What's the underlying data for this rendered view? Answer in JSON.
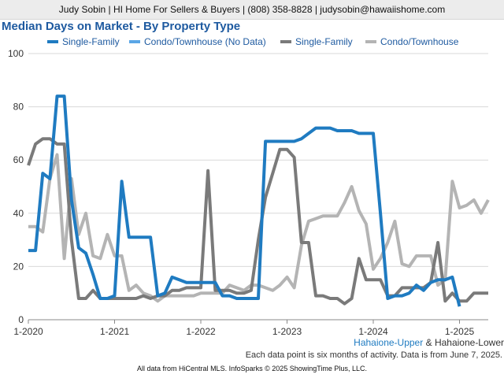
{
  "header": {
    "contact_line": "Judy Sobin | HI Home For Sellers & Buyers | (808) 358-8828 | judysobin@hawaiishome.com"
  },
  "chart_data": {
    "type": "line",
    "title": "Median Days on Market - By Property Type",
    "xlabel": "",
    "ylabel": "",
    "ylim": [
      0,
      100
    ],
    "y_ticks": [
      "0",
      "20",
      "40",
      "60",
      "80",
      "100"
    ],
    "x_ticks": [
      "1-2020",
      "1-2021",
      "1-2022",
      "1-2023",
      "1-2024",
      "1-2025"
    ],
    "x_range": [
      "2020-01",
      "2025-05"
    ],
    "grid": "horizontal",
    "legend_position": "top",
    "series": [
      {
        "name": "Single-Family",
        "color": "#1f7bc1",
        "x": [
          "2020-01",
          "2020-02",
          "2020-03",
          "2020-04",
          "2020-05",
          "2020-06",
          "2020-07",
          "2020-08",
          "2020-09",
          "2020-10",
          "2020-11",
          "2020-12",
          "2021-01",
          "2021-02",
          "2021-03",
          "2021-04",
          "2021-05",
          "2021-06",
          "2021-07",
          "2021-08",
          "2021-09",
          "2021-10",
          "2021-11",
          "2021-12",
          "2022-01",
          "2022-02",
          "2022-03",
          "2022-04",
          "2022-05",
          "2022-06",
          "2022-07",
          "2022-08",
          "2022-09",
          "2022-10",
          "2022-11",
          "2022-12",
          "2023-01",
          "2023-02",
          "2023-03",
          "2023-04",
          "2023-05",
          "2023-06",
          "2023-07",
          "2023-08",
          "2023-09",
          "2023-10",
          "2023-11",
          "2023-12",
          "2024-01",
          "2024-02",
          "2024-03",
          "2024-04",
          "2024-05",
          "2024-06",
          "2024-07",
          "2024-08",
          "2024-09",
          "2024-10",
          "2024-11",
          "2024-12",
          "2025-01",
          "2025-02",
          "2025-03"
        ],
        "values": [
          26,
          26,
          55,
          53,
          84,
          84,
          45,
          27,
          25,
          17,
          8,
          8,
          9,
          52,
          31,
          31,
          31,
          31,
          9,
          10,
          16,
          15,
          14,
          14,
          14,
          14,
          14,
          9,
          9,
          8,
          8,
          8,
          8,
          67,
          67,
          67,
          67,
          67,
          68,
          70,
          72,
          72,
          72,
          71,
          71,
          71,
          70,
          70,
          70,
          40,
          8,
          9,
          9,
          10,
          13,
          11,
          14,
          15,
          15,
          16,
          5,
          null,
          null
        ]
      },
      {
        "name": "Condo/Townhouse (No Data)",
        "color": "#5aa6e6",
        "x": [],
        "values": []
      },
      {
        "name": "Single-Family",
        "color": "#7a7a7a",
        "x": [
          "2020-01",
          "2020-02",
          "2020-03",
          "2020-04",
          "2020-05",
          "2020-06",
          "2020-07",
          "2020-08",
          "2020-09",
          "2020-10",
          "2020-11",
          "2020-12",
          "2021-01",
          "2021-02",
          "2021-03",
          "2021-04",
          "2021-05",
          "2021-06",
          "2021-07",
          "2021-08",
          "2021-09",
          "2021-10",
          "2021-11",
          "2021-12",
          "2022-01",
          "2022-02",
          "2022-03",
          "2022-04",
          "2022-05",
          "2022-06",
          "2022-07",
          "2022-08",
          "2022-09",
          "2022-10",
          "2022-11",
          "2022-12",
          "2023-01",
          "2023-02",
          "2023-03",
          "2023-04",
          "2023-05",
          "2023-06",
          "2023-07",
          "2023-08",
          "2023-09",
          "2023-10",
          "2023-11",
          "2023-12",
          "2024-01",
          "2024-02",
          "2024-03",
          "2024-04",
          "2024-05",
          "2024-06",
          "2024-07",
          "2024-08",
          "2024-09",
          "2024-10",
          "2024-11",
          "2024-12",
          "2025-01",
          "2025-02",
          "2025-03",
          "2025-04",
          "2025-05"
        ],
        "values": [
          58,
          66,
          68,
          68,
          66,
          66,
          30,
          8,
          8,
          11,
          8,
          8,
          8,
          8,
          8,
          8,
          9,
          8,
          9,
          9,
          11,
          11,
          12,
          12,
          12,
          56,
          11,
          11,
          11,
          10,
          10,
          11,
          30,
          46,
          55,
          64,
          64,
          61,
          29,
          29,
          9,
          9,
          8,
          8,
          6,
          8,
          23,
          15,
          15,
          15,
          9,
          9,
          12,
          12,
          12,
          12,
          14,
          29,
          7,
          10,
          7,
          7,
          10,
          10,
          10
        ]
      },
      {
        "name": "Condo/Townhouse",
        "color": "#b4b4b4",
        "x": [
          "2020-01",
          "2020-02",
          "2020-03",
          "2020-04",
          "2020-05",
          "2020-06",
          "2020-07",
          "2020-08",
          "2020-09",
          "2020-10",
          "2020-11",
          "2020-12",
          "2021-01",
          "2021-02",
          "2021-03",
          "2021-04",
          "2021-05",
          "2021-06",
          "2021-07",
          "2021-08",
          "2021-09",
          "2021-10",
          "2021-11",
          "2021-12",
          "2022-01",
          "2022-02",
          "2022-03",
          "2022-04",
          "2022-05",
          "2022-06",
          "2022-07",
          "2022-08",
          "2022-09",
          "2022-10",
          "2022-11",
          "2022-12",
          "2023-01",
          "2023-02",
          "2023-03",
          "2023-04",
          "2023-05",
          "2023-06",
          "2023-07",
          "2023-08",
          "2023-09",
          "2023-10",
          "2023-11",
          "2023-12",
          "2024-01",
          "2024-02",
          "2024-03",
          "2024-04",
          "2024-05",
          "2024-06",
          "2024-07",
          "2024-08",
          "2024-09",
          "2024-10",
          "2024-11",
          "2024-12",
          "2025-01",
          "2025-02",
          "2025-03",
          "2025-04",
          "2025-05"
        ],
        "values": [
          35,
          35,
          33,
          53,
          62,
          23,
          53,
          32,
          40,
          24,
          23,
          32,
          24,
          24,
          11,
          13,
          10,
          9,
          7,
          9,
          9,
          9,
          9,
          9,
          10,
          10,
          10,
          10,
          13,
          12,
          11,
          13,
          13,
          12,
          11,
          13,
          16,
          12,
          28,
          37,
          38,
          39,
          39,
          39,
          44,
          50,
          41,
          36,
          19,
          23,
          29,
          37,
          21,
          20,
          24,
          24,
          24,
          13,
          15,
          52,
          42,
          43,
          45,
          40,
          45
        ]
      }
    ]
  },
  "footer": {
    "area_primary": "Hahaione-Upper",
    "area_connector": "&",
    "area_secondary": "Hahaione-Lower",
    "note": "Each data point is six months of activity. Data is from June 7, 2025.",
    "source": "All data from HiCentral MLS. InfoSparks © 2025 ShowingTime Plus, LLC."
  }
}
